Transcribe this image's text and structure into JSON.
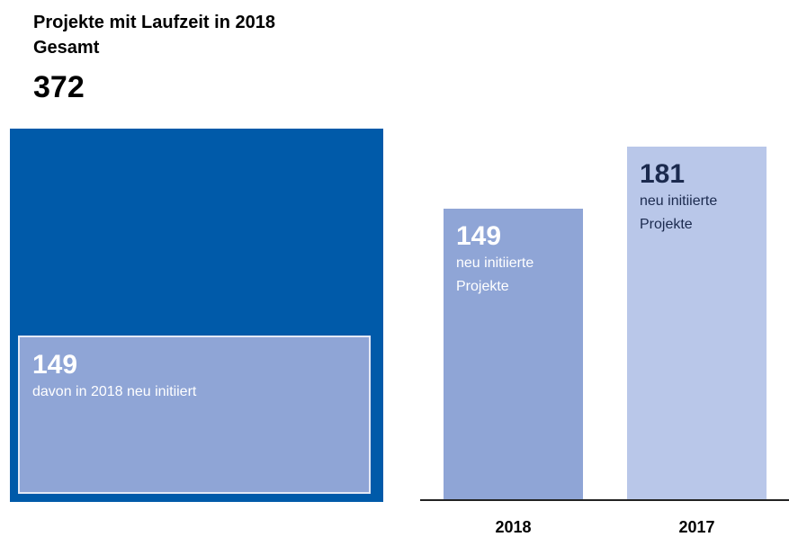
{
  "title": "Projekte mit Laufzeit in 2018",
  "subtitle": "Gesamt",
  "total": 372,
  "part": {
    "value": 149,
    "label": "davon in 2018 neu initiiert"
  },
  "chart_data": {
    "type": "bar",
    "categories": [
      "2018",
      "2017"
    ],
    "values": [
      149,
      181
    ],
    "notes": [
      "neu initiierte Projekte",
      "neu initiierte Projekte"
    ],
    "colors": [
      "#8fa5d6",
      "#b9c7e9"
    ],
    "text_colors": [
      "#ffffff",
      "#1b2a4e"
    ]
  }
}
